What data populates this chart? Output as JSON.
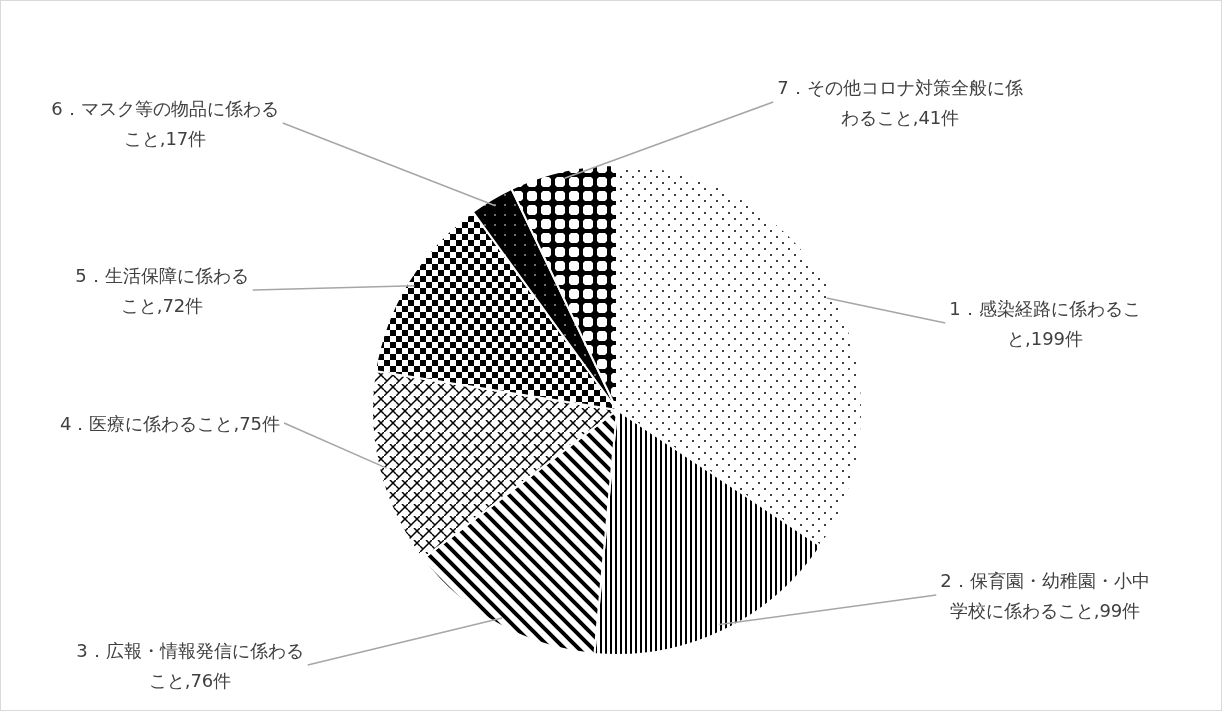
{
  "chart_data": {
    "type": "pie",
    "categories": [
      "1．感染経路に係わること",
      "2．保育園・幼稚園・小中学校に係わること",
      "3．広報・情報発信に係わること",
      "4．医療に係わること",
      "5．生活保障に係わること",
      "6．マスク等の物品に係わること",
      "7．その他コロナ対策全般に係わること"
    ],
    "values": [
      199,
      99,
      76,
      75,
      72,
      17,
      41
    ],
    "value_labels": [
      "199件",
      "99件",
      "76件",
      "75件",
      "72件",
      "17件",
      "41件"
    ],
    "data_labels": true
  }
}
